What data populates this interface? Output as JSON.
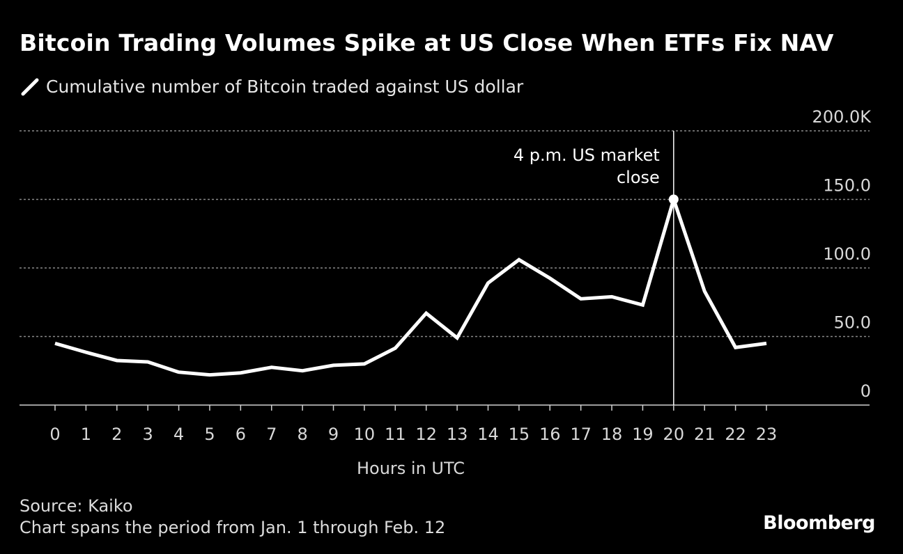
{
  "chart_data": {
    "type": "line",
    "title": "Bitcoin Trading Volumes Spike at US Close When ETFs Fix NAV",
    "series": [
      {
        "name": "Cumulative number of Bitcoin traded against US dollar",
        "color": "#ffffff",
        "values": [
          45,
          38.5,
          32.5,
          31.5,
          24,
          22,
          23.5,
          27.5,
          25,
          29,
          30,
          41.5,
          67,
          49,
          89,
          106,
          92.5,
          77.5,
          79,
          73,
          150,
          83,
          42,
          45
        ]
      }
    ],
    "x": [
      0,
      1,
      2,
      3,
      4,
      5,
      6,
      7,
      8,
      9,
      10,
      11,
      12,
      13,
      14,
      15,
      16,
      17,
      18,
      19,
      20,
      21,
      22,
      23
    ],
    "x_tick_labels": [
      "0",
      "1",
      "2",
      "3",
      "4",
      "5",
      "6",
      "7",
      "8",
      "9",
      "10",
      "11",
      "12",
      "13",
      "14",
      "15",
      "16",
      "17",
      "18",
      "19",
      "20",
      "21",
      "22",
      "23"
    ],
    "xlabel": "Hours in UTC",
    "ylabel": "",
    "ylim": [
      0,
      200
    ],
    "y_ticks": [
      0,
      50,
      100,
      150,
      200
    ],
    "y_tick_labels": [
      "0",
      "50.0",
      "100.0",
      "150.0",
      "200.0K"
    ],
    "grid": true,
    "legend_position": "top-left",
    "annotation": {
      "x": 20,
      "lines": [
        "4 p.m. US market",
        "close"
      ]
    },
    "background": "#000000"
  },
  "footer": {
    "source": "Source: Kaiko",
    "note": "Chart spans the period from Jan. 1 through Feb. 12",
    "logo": "Bloomberg"
  }
}
